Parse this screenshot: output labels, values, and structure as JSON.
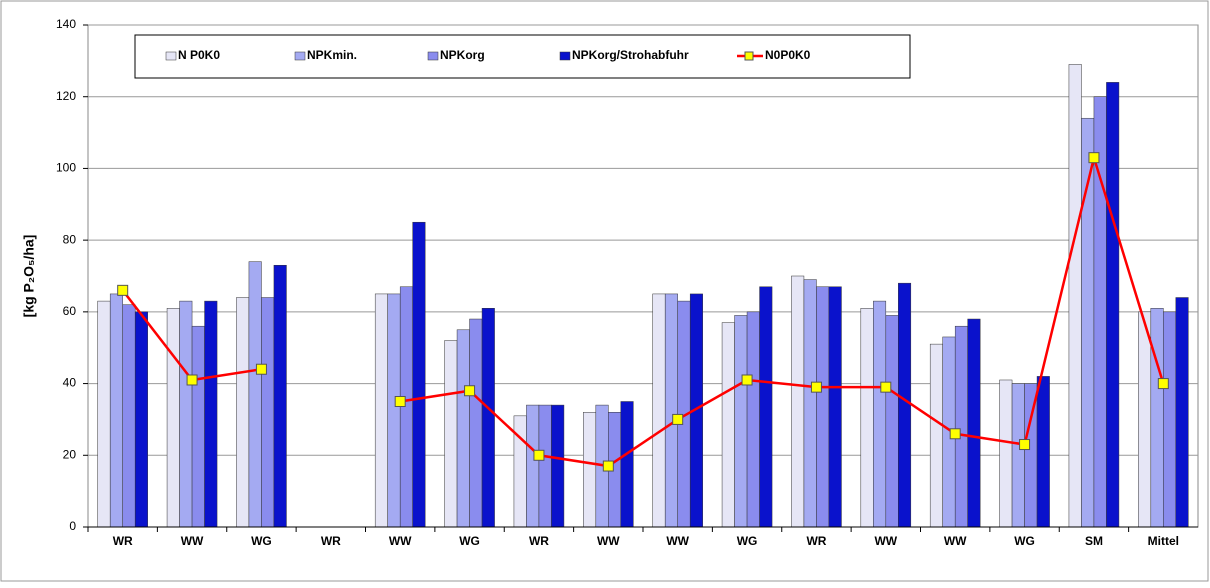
{
  "chart_data": {
    "type": "bar",
    "y_label": "[kg P₂O₅/ha]",
    "categories": [
      "WR",
      "WW",
      "WG",
      "WR",
      "WW",
      "WG",
      "WR",
      "WW",
      "WW",
      "WG",
      "WR",
      "WW",
      "WW",
      "WG",
      "SM",
      "Mittel"
    ],
    "series": [
      {
        "name": "N P0K0",
        "color": "#e6e6f6",
        "values": [
          63,
          61,
          64,
          null,
          65,
          52,
          31,
          32,
          65,
          57,
          70,
          61,
          51,
          41,
          129,
          60
        ]
      },
      {
        "name": "NPKmin.",
        "color": "#a4aaf2",
        "values": [
          65,
          63,
          74,
          null,
          65,
          55,
          34,
          34,
          65,
          59,
          69,
          63,
          53,
          40,
          114,
          61
        ]
      },
      {
        "name": "NPKorg",
        "color": "#8a8cee",
        "values": [
          62,
          56,
          64,
          null,
          67,
          58,
          34,
          32,
          63,
          60,
          67,
          59,
          56,
          40,
          120,
          60
        ]
      },
      {
        "name": "NPKorg/Strohabfuhr",
        "color": "#0a12cc",
        "values": [
          60,
          63,
          73,
          null,
          85,
          61,
          34,
          35,
          65,
          67,
          67,
          68,
          58,
          42,
          124,
          64
        ]
      },
      {
        "name": "N0P0K0",
        "type": "line",
        "color": "#ff0000",
        "marker_color": "#ffff00",
        "values": [
          66,
          41,
          44,
          null,
          35,
          38,
          20,
          17,
          30,
          41,
          39,
          39,
          26,
          23,
          103,
          40
        ]
      }
    ],
    "ylim": [
      0,
      140
    ],
    "yticks": [
      0,
      20,
      40,
      60,
      80,
      100,
      120,
      140
    ],
    "grid": true
  }
}
